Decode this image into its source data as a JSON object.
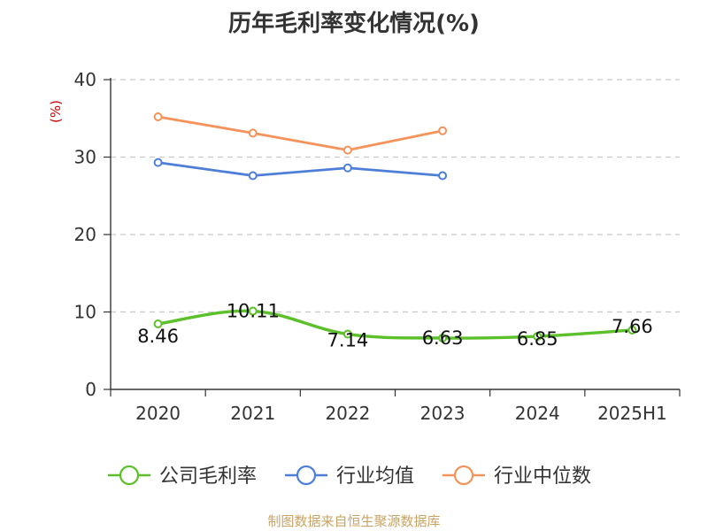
{
  "chart_data": {
    "type": "line",
    "title": "历年毛利率变化情况(%)",
    "ylabel": "(%)",
    "categories": [
      "2020",
      "2021",
      "2022",
      "2023",
      "2024",
      "2025H1"
    ],
    "ylim": [
      0,
      40
    ],
    "yticks": [
      "0",
      "10",
      "20",
      "30",
      "40"
    ],
    "grid": true,
    "legend_position": "bottom",
    "series": [
      {
        "name": "公司毛利率",
        "color": "#5cc02a",
        "values": [
          8.46,
          10.11,
          7.14,
          6.63,
          6.85,
          7.66
        ],
        "labels": [
          "8.46",
          "10.11",
          "7.14",
          "6.63",
          "6.85",
          "7.66"
        ]
      },
      {
        "name": "行业均值",
        "color": "#4e7fd8",
        "values": [
          29.3,
          27.6,
          28.6,
          27.6,
          null,
          null
        ]
      },
      {
        "name": "行业中位数",
        "color": "#f5935a",
        "values": [
          35.2,
          33.1,
          30.9,
          33.4,
          null,
          null
        ]
      }
    ]
  },
  "footer": {
    "source": "制图数据来自恒生聚源数据库"
  }
}
